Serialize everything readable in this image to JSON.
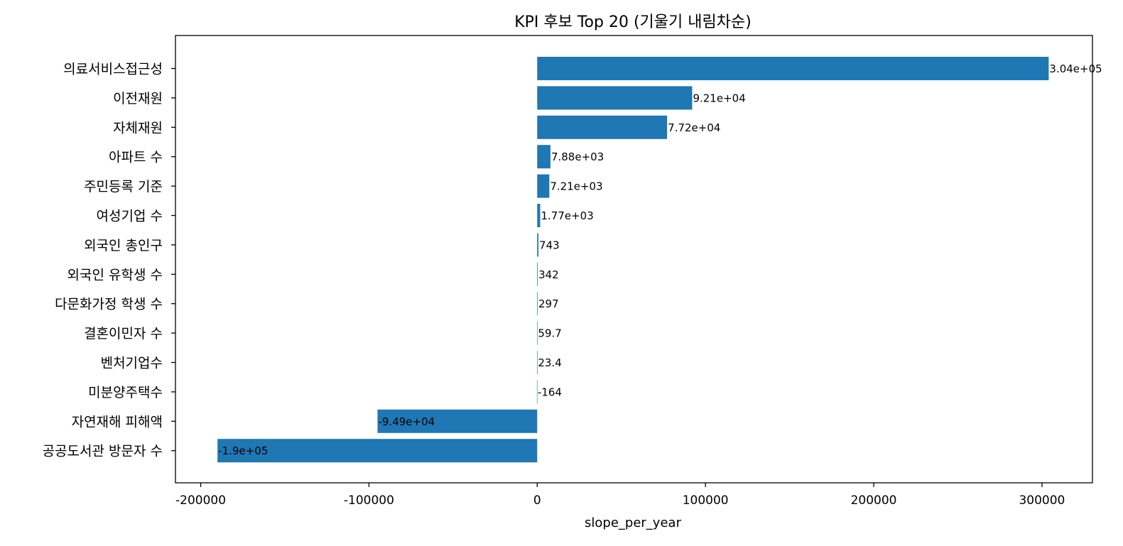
{
  "chart_data": {
    "type": "bar",
    "orientation": "horizontal",
    "title": "KPI 후보 Top 20 (기울기 내림차순)",
    "xlabel": "slope_per_year",
    "ylabel": "",
    "xlim": [
      -215000,
      330000
    ],
    "xticks": [
      -200000,
      -100000,
      0,
      100000,
      200000,
      300000
    ],
    "xtick_labels": [
      "-200000",
      "-100000",
      "0",
      "100000",
      "200000",
      "300000"
    ],
    "bar_color": "#1f77b4",
    "grid": false,
    "legend": "none",
    "categories": [
      "의료서비스접근성",
      "이전재원",
      "자체재원",
      "아파트 수",
      "주민등록 기준",
      "여성기업 수",
      "외국인 총인구",
      "외국인 유학생 수",
      "다문화가정 학생 수",
      "결혼이민자 수",
      "벤처기업수",
      "미분양주택수",
      "자연재해 피해액",
      "공공도서관 방문자 수"
    ],
    "values": [
      304000,
      92100,
      77200,
      7880,
      7210,
      1770,
      743,
      342,
      297,
      59.7,
      23.4,
      -164,
      -94900,
      -190000
    ],
    "value_labels": [
      "3.04e+05",
      "9.21e+04",
      "7.72e+04",
      "7.88e+03",
      "7.21e+03",
      "1.77e+03",
      "743",
      "342",
      "297",
      "59.7",
      "23.4",
      "-164",
      "-9.49e+04",
      "-1.9e+05"
    ]
  }
}
